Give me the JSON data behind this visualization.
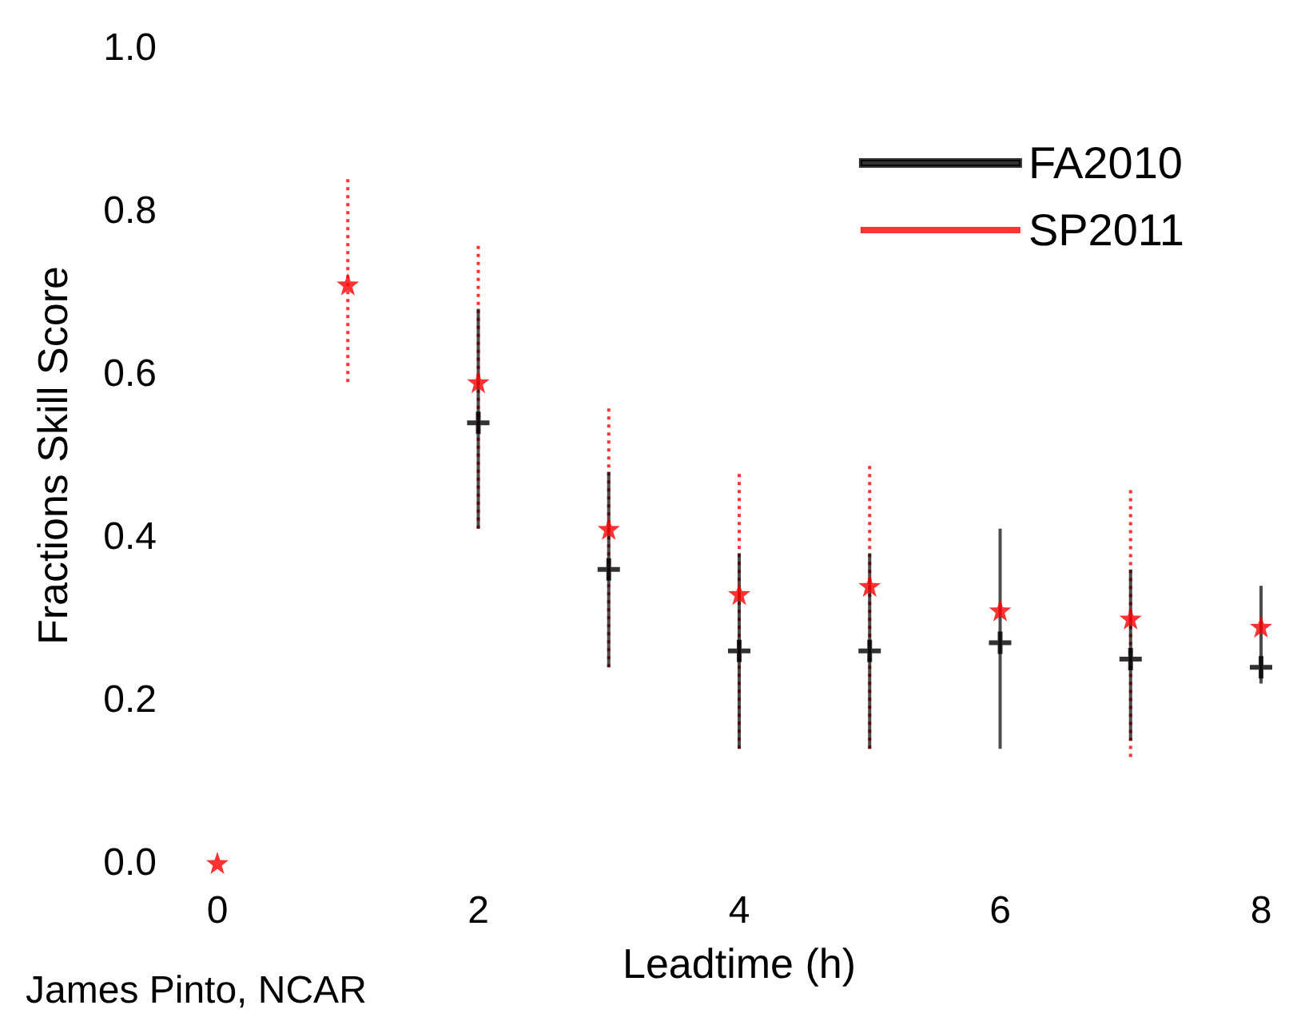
{
  "chart_data": {
    "type": "scatter",
    "xlabel": "Leadtime (h)",
    "ylabel": "Fractions Skill Score",
    "x": [
      0,
      1,
      2,
      3,
      4,
      5,
      6,
      7,
      8
    ],
    "series": [
      {
        "name": "FA2010",
        "color": "#000000",
        "marker": "cross",
        "values": [
          null,
          null,
          0.54,
          0.36,
          0.26,
          0.26,
          0.27,
          0.25,
          0.24
        ],
        "errors": [
          null,
          null,
          [
            0.41,
            0.68
          ],
          [
            0.24,
            0.48
          ],
          [
            0.14,
            0.38
          ],
          [
            0.14,
            0.38
          ],
          [
            0.14,
            0.41
          ],
          [
            0.15,
            0.36
          ],
          [
            0.22,
            0.34
          ]
        ]
      },
      {
        "name": "SP2011",
        "color": "#ff0000",
        "marker": "star",
        "values": [
          0,
          0.71,
          0.59,
          0.41,
          0.33,
          0.34,
          0.31,
          0.3,
          0.29
        ],
        "errors": [
          null,
          [
            0.59,
            0.84
          ],
          [
            0.41,
            0.76
          ],
          [
            0.24,
            0.56
          ],
          [
            0.14,
            0.48
          ],
          [
            0.14,
            0.49
          ],
          null,
          [
            0.13,
            0.46
          ],
          null
        ]
      }
    ],
    "xlim": [
      0,
      8
    ],
    "xticks": [
      0,
      2,
      4,
      6,
      8
    ],
    "ylim": [
      0,
      1
    ],
    "yticks": [
      {
        "value": 0,
        "label": "0.0"
      },
      {
        "value": 0.2,
        "label": "0.2"
      },
      {
        "value": 0.4,
        "label": "0.4"
      },
      {
        "value": 0.6,
        "label": "0.6"
      },
      {
        "value": 0.8,
        "label": "0.8"
      },
      {
        "value": 1,
        "label": "1.0"
      }
    ],
    "grid": false,
    "legend": "top right",
    "annotations": [
      "James Pinto, NCAR"
    ]
  }
}
